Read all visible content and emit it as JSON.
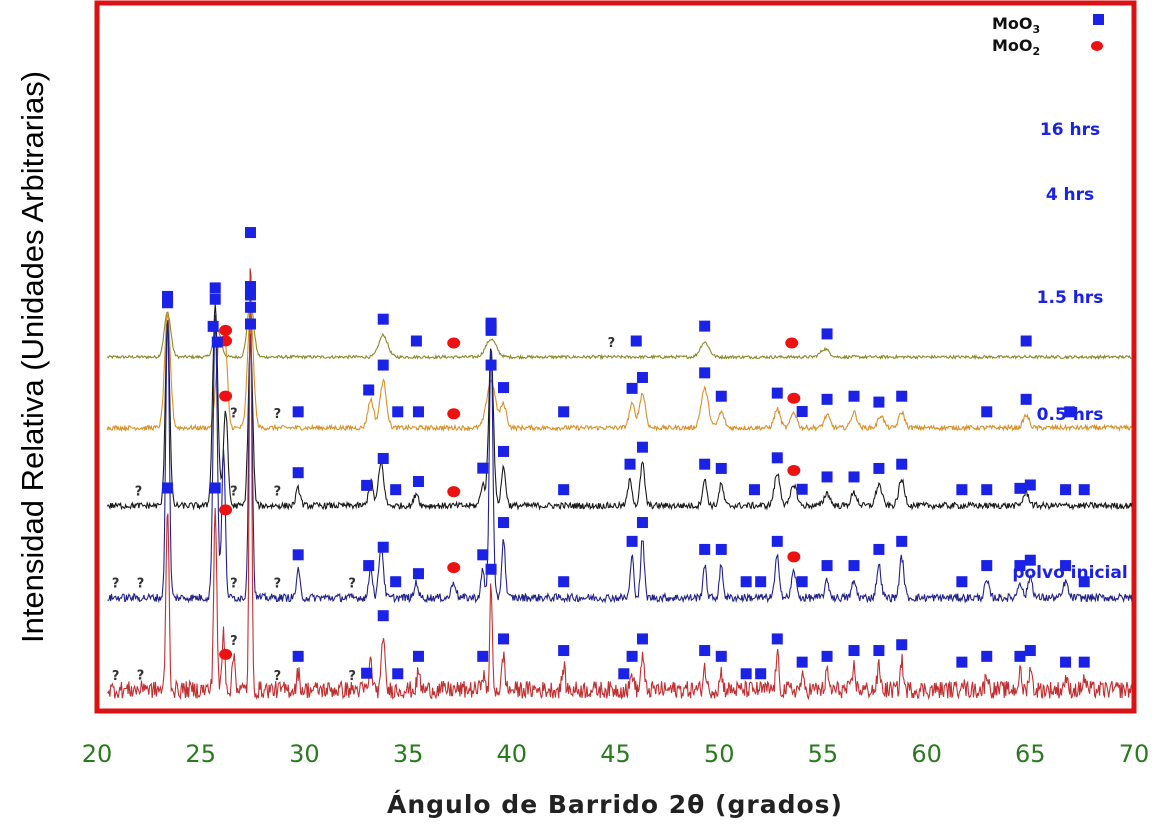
{
  "chart_data": {
    "type": "line",
    "xlabel": "Ángulo de Barrido 2θ (grados)",
    "ylabel": "Intensidad Relativa (Unidades Arbitrarias)",
    "xlim": [
      20,
      70
    ],
    "x_ticks": [
      "20",
      "25",
      "30",
      "35",
      "40",
      "45",
      "50",
      "55",
      "60",
      "65",
      "70"
    ],
    "y_ticks": "none",
    "legend": {
      "position": "top-right",
      "entries": [
        {
          "label_main": "MoO",
          "label_sub": "3",
          "marker": "square",
          "color": "#1a22e6"
        },
        {
          "label_main": "MoO",
          "label_sub": "2",
          "marker": "circle",
          "color": "#ee1111"
        }
      ]
    },
    "series": [
      {
        "name": "16 hrs",
        "color": "#8a8a2a",
        "offset": 0.5,
        "scale": 0.14,
        "peaks": [
          [
            23.4,
            0.45,
            0.22
          ],
          [
            25.8,
            0.28,
            0.25
          ],
          [
            27.4,
            0.55,
            0.22
          ],
          [
            33.8,
            0.22,
            0.3
          ],
          [
            39.0,
            0.18,
            0.35
          ],
          [
            49.3,
            0.15,
            0.3
          ],
          [
            55.1,
            0.08,
            0.3
          ]
        ],
        "mo_o3": [
          23.4,
          25.6,
          27.4,
          33.8,
          35.4,
          39.0,
          46.0,
          49.3,
          55.2,
          64.8
        ],
        "mo_o2": [
          26.2,
          37.2,
          53.5
        ],
        "unknown": [
          44.8
        ]
      },
      {
        "name": "4 hrs",
        "color": "#d9902a",
        "offset": 0.4,
        "scale": 0.22,
        "peaks": [
          [
            23.4,
            0.72,
            0.2
          ],
          [
            25.9,
            0.55,
            0.22
          ],
          [
            26.2,
            0.45,
            0.15
          ],
          [
            27.4,
            0.75,
            0.2
          ],
          [
            33.2,
            0.18,
            0.2
          ],
          [
            33.8,
            0.3,
            0.22
          ],
          [
            39.0,
            0.3,
            0.3
          ],
          [
            39.6,
            0.15,
            0.2
          ],
          [
            45.8,
            0.15,
            0.2
          ],
          [
            46.3,
            0.22,
            0.2
          ],
          [
            49.3,
            0.25,
            0.25
          ],
          [
            50.1,
            0.1,
            0.2
          ],
          [
            52.8,
            0.12,
            0.2
          ],
          [
            53.6,
            0.1,
            0.2
          ],
          [
            55.2,
            0.08,
            0.2
          ],
          [
            56.5,
            0.1,
            0.2
          ],
          [
            57.8,
            0.08,
            0.2
          ],
          [
            58.8,
            0.1,
            0.2
          ],
          [
            64.8,
            0.08,
            0.2
          ]
        ],
        "mo_o3": [
          23.4,
          25.8,
          27.4,
          29.7,
          33.1,
          33.8,
          34.5,
          35.5,
          39.0,
          39.6,
          42.5,
          45.8,
          46.3,
          49.3,
          50.1,
          52.8,
          54.0,
          55.2,
          56.5,
          57.7,
          58.8,
          62.9,
          64.8,
          66.9
        ],
        "mo_o2": [
          26.2,
          37.2,
          53.6
        ],
        "unknown": [
          26.6,
          28.7
        ]
      },
      {
        "name": "1.5 hrs",
        "color": "#1a1a1a",
        "offset": 0.29,
        "scale": 0.3,
        "peaks": [
          [
            23.4,
            0.88,
            0.15
          ],
          [
            25.7,
            0.95,
            0.17
          ],
          [
            26.2,
            0.45,
            0.15
          ],
          [
            27.4,
            0.78,
            0.15
          ],
          [
            29.7,
            0.08,
            0.15
          ],
          [
            33.2,
            0.12,
            0.15
          ],
          [
            33.7,
            0.2,
            0.18
          ],
          [
            35.4,
            0.06,
            0.15
          ],
          [
            38.6,
            0.1,
            0.15
          ],
          [
            39.0,
            0.75,
            0.16
          ],
          [
            39.6,
            0.18,
            0.15
          ],
          [
            45.7,
            0.12,
            0.15
          ],
          [
            46.3,
            0.2,
            0.15
          ],
          [
            49.3,
            0.12,
            0.15
          ],
          [
            50.1,
            0.1,
            0.15
          ],
          [
            52.8,
            0.15,
            0.2
          ],
          [
            53.6,
            0.1,
            0.2
          ],
          [
            55.2,
            0.06,
            0.2
          ],
          [
            56.5,
            0.06,
            0.2
          ],
          [
            57.7,
            0.1,
            0.2
          ],
          [
            58.8,
            0.12,
            0.2
          ],
          [
            64.8,
            0.06,
            0.2
          ]
        ],
        "mo_o3": [
          23.4,
          25.7,
          27.4,
          29.7,
          33.0,
          33.8,
          34.4,
          35.5,
          38.6,
          39.0,
          39.6,
          42.5,
          45.7,
          46.3,
          49.3,
          50.1,
          51.7,
          52.8,
          54.0,
          55.2,
          56.5,
          57.7,
          58.8,
          61.7,
          62.9,
          64.5,
          65.0,
          66.7,
          67.6
        ],
        "mo_o2": [
          26.2,
          37.2,
          53.6
        ],
        "unknown": [
          22.0,
          26.6,
          28.7
        ]
      },
      {
        "name": "0.5 hrs",
        "color": "#22228a",
        "offset": 0.16,
        "scale": 0.38,
        "peaks": [
          [
            23.4,
            1.05,
            0.12
          ],
          [
            25.7,
            1.05,
            0.14
          ],
          [
            26.1,
            0.55,
            0.12
          ],
          [
            27.4,
            1.02,
            0.12
          ],
          [
            29.7,
            0.1,
            0.12
          ],
          [
            33.2,
            0.12,
            0.12
          ],
          [
            33.7,
            0.2,
            0.15
          ],
          [
            35.4,
            0.06,
            0.12
          ],
          [
            37.2,
            0.06,
            0.15
          ],
          [
            38.6,
            0.1,
            0.12
          ],
          [
            39.0,
            0.95,
            0.12
          ],
          [
            39.6,
            0.22,
            0.12
          ],
          [
            45.8,
            0.15,
            0.12
          ],
          [
            46.3,
            0.22,
            0.12
          ],
          [
            49.3,
            0.12,
            0.12
          ],
          [
            50.1,
            0.12,
            0.12
          ],
          [
            52.8,
            0.15,
            0.15
          ],
          [
            53.6,
            0.1,
            0.15
          ],
          [
            55.2,
            0.06,
            0.15
          ],
          [
            56.5,
            0.06,
            0.15
          ],
          [
            57.7,
            0.12,
            0.15
          ],
          [
            58.8,
            0.15,
            0.15
          ],
          [
            62.9,
            0.06,
            0.15
          ],
          [
            64.5,
            0.06,
            0.15
          ],
          [
            65.0,
            0.08,
            0.15
          ],
          [
            66.7,
            0.06,
            0.15
          ]
        ],
        "mo_o3": [
          23.4,
          25.7,
          27.4,
          29.7,
          33.1,
          33.8,
          34.4,
          35.5,
          38.6,
          39.0,
          39.6,
          42.5,
          45.8,
          46.3,
          49.3,
          50.1,
          51.3,
          52.0,
          52.8,
          54.0,
          55.2,
          56.5,
          57.7,
          58.8,
          61.7,
          62.9,
          64.5,
          65.0,
          66.7,
          67.6
        ],
        "mo_o2": [
          26.2,
          37.2,
          53.6
        ],
        "unknown": [
          20.9,
          22.1,
          26.6,
          28.7,
          32.3
        ]
      },
      {
        "name": "polvo inicial",
        "color": "#c03030",
        "offset": 0.03,
        "scale": 0.82,
        "peaks": [
          [
            22.3,
            0.01,
            0.1
          ],
          [
            23.4,
            0.32,
            0.1
          ],
          [
            25.7,
            0.32,
            0.1
          ],
          [
            26.1,
            0.1,
            0.1
          ],
          [
            26.6,
            0.06,
            0.1
          ],
          [
            27.4,
            0.76,
            0.08
          ],
          [
            29.7,
            0.03,
            0.1
          ],
          [
            33.2,
            0.05,
            0.1
          ],
          [
            33.8,
            0.1,
            0.1
          ],
          [
            35.5,
            0.03,
            0.1
          ],
          [
            38.6,
            0.03,
            0.1
          ],
          [
            39.0,
            0.18,
            0.08
          ],
          [
            39.6,
            0.06,
            0.1
          ],
          [
            42.5,
            0.04,
            0.1
          ],
          [
            45.8,
            0.03,
            0.1
          ],
          [
            46.3,
            0.06,
            0.1
          ],
          [
            49.3,
            0.04,
            0.1
          ],
          [
            50.1,
            0.03,
            0.1
          ],
          [
            52.8,
            0.06,
            0.1
          ],
          [
            54.0,
            0.02,
            0.1
          ],
          [
            55.2,
            0.03,
            0.1
          ],
          [
            56.5,
            0.04,
            0.1
          ],
          [
            57.7,
            0.04,
            0.1
          ],
          [
            58.8,
            0.05,
            0.1
          ],
          [
            61.7,
            0.02,
            0.1
          ],
          [
            62.9,
            0.03,
            0.1
          ],
          [
            64.5,
            0.03,
            0.1
          ],
          [
            65.0,
            0.04,
            0.1
          ],
          [
            66.7,
            0.02,
            0.1
          ],
          [
            67.6,
            0.02,
            0.1
          ]
        ],
        "mo_o3": [
          23.4,
          25.7,
          27.4,
          29.7,
          33.0,
          33.8,
          34.5,
          35.5,
          38.6,
          39.0,
          39.6,
          42.5,
          45.4,
          45.8,
          46.3,
          49.3,
          50.1,
          51.3,
          52.0,
          52.8,
          54.0,
          55.2,
          56.5,
          57.7,
          58.8,
          61.7,
          62.9,
          64.5,
          65.0,
          66.7,
          67.6
        ],
        "mo_o2": [
          26.2
        ],
        "unknown": [
          20.9,
          22.1,
          26.6,
          28.7,
          32.3
        ]
      }
    ]
  }
}
